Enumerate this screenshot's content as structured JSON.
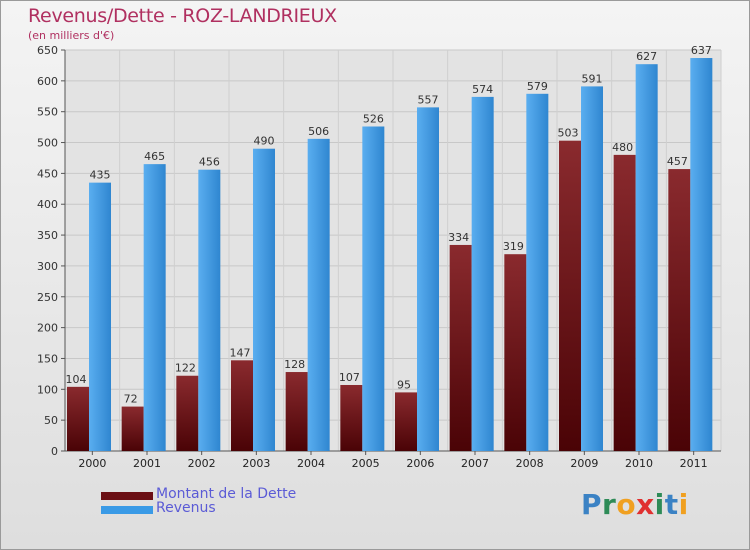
{
  "title": "Revenus/Dette - ROZ-LANDRIEUX",
  "subtitle": "(en milliers d'€)",
  "brand": {
    "text": "Proxiti",
    "letters": [
      "P",
      "r",
      "o",
      "x",
      "i",
      "t",
      "i"
    ],
    "letter_colors": [
      "#3b82c4",
      "#2e8b57",
      "#f0a020",
      "#e03030",
      "#2e8b57",
      "#3b82c4",
      "#f0a020"
    ]
  },
  "colors": {
    "dette": "#6b0f14",
    "revenus": "#3a9ae6",
    "title": "#b03060",
    "legend_text": "#5b5bd6"
  },
  "chart_data": {
    "type": "bar",
    "title": "Revenus/Dette - ROZ-LANDRIEUX",
    "subtitle": "(en milliers d'€)",
    "categories": [
      "2000",
      "2001",
      "2002",
      "2003",
      "2004",
      "2005",
      "2006",
      "2007",
      "2008",
      "2009",
      "2010",
      "2011"
    ],
    "series": [
      {
        "name": "Montant de la Dette",
        "values": [
          104,
          72,
          122,
          147,
          128,
          107,
          95,
          334,
          319,
          503,
          480,
          457
        ]
      },
      {
        "name": "Revenus",
        "values": [
          435,
          465,
          456,
          490,
          506,
          526,
          557,
          574,
          579,
          591,
          627,
          637
        ]
      }
    ],
    "ylim": [
      0,
      650
    ],
    "yticks": [
      0,
      50,
      100,
      150,
      200,
      250,
      300,
      350,
      400,
      450,
      500,
      550,
      600,
      650
    ],
    "grid": true,
    "legend": "bottom-left"
  }
}
